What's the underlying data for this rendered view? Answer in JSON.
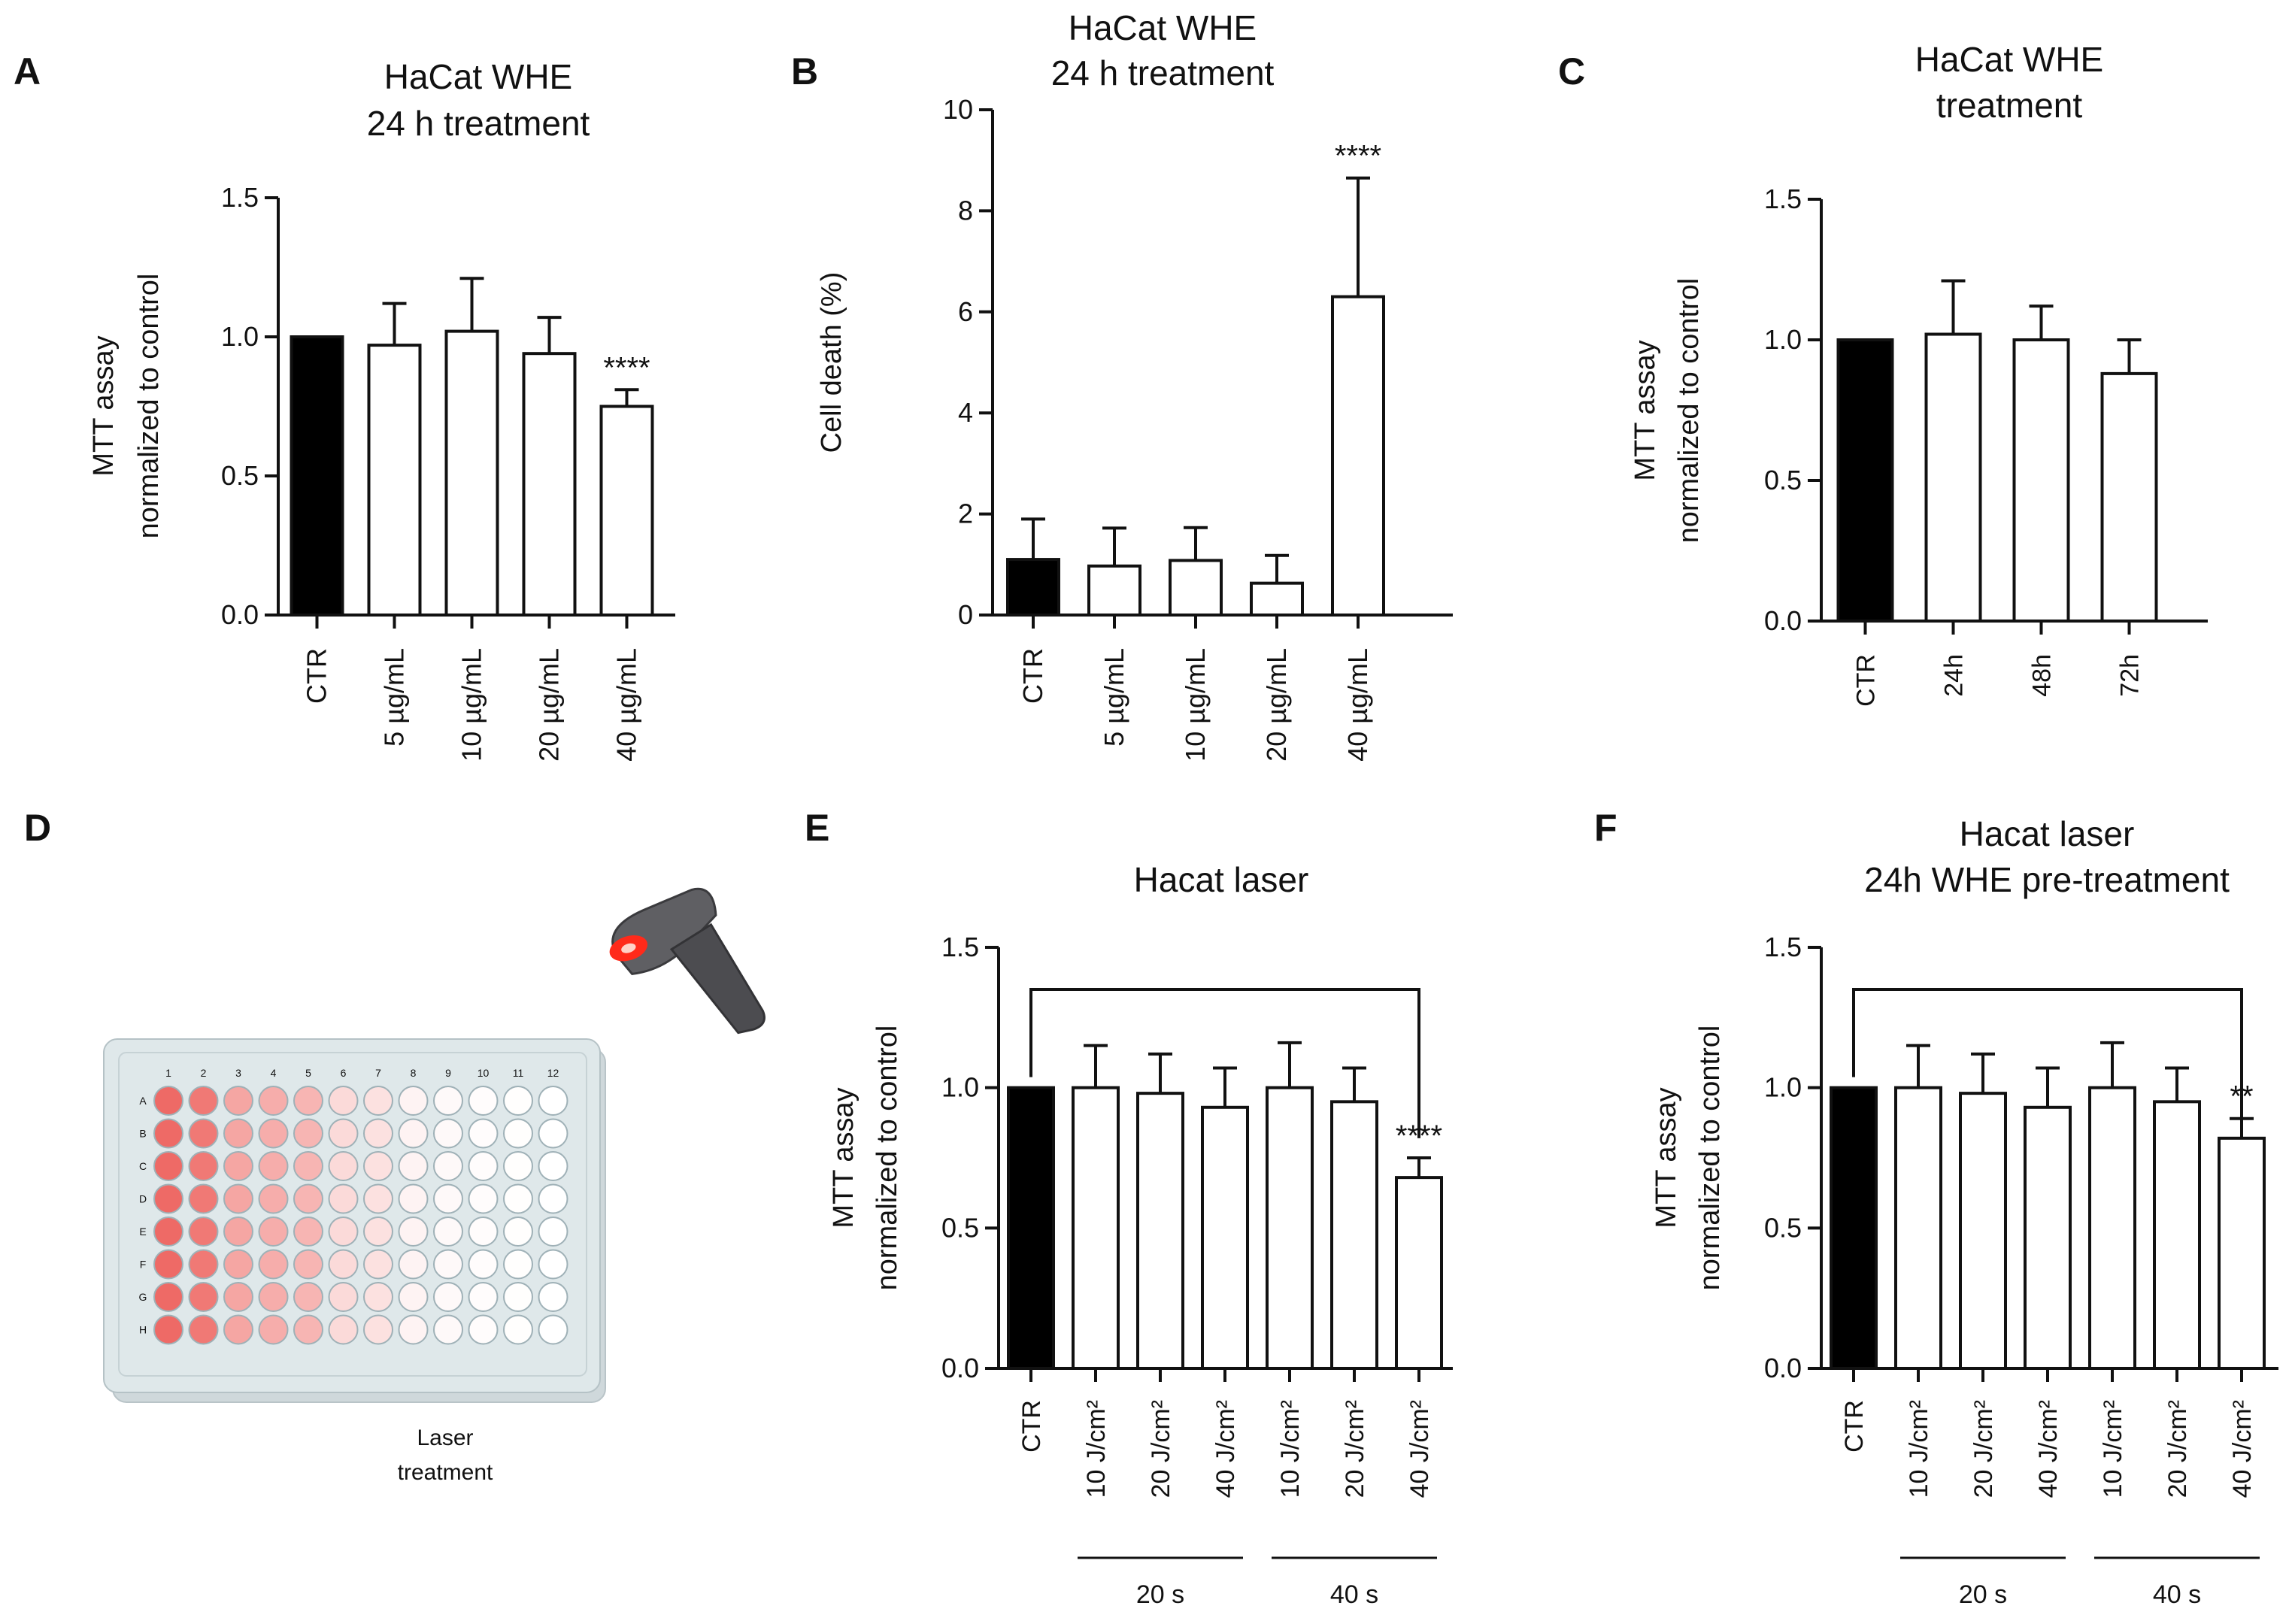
{
  "chart_data": [
    {
      "panel": "A",
      "type": "bar",
      "title": [
        "HaCat WHE",
        "24 h treatment"
      ],
      "ylabel": [
        "MTT assay",
        "normalized to control"
      ],
      "xlabel": "",
      "ylim": [
        0,
        1.5
      ],
      "yticks": [
        "0.0",
        "0.5",
        "1.0",
        "1.5"
      ],
      "categories": [
        "CTR",
        "5 µg/mL",
        "10 µg/mL",
        "20 µg/mL",
        "40 µg/mL"
      ],
      "values": [
        1.0,
        0.97,
        1.02,
        0.94,
        0.75
      ],
      "errors": [
        0,
        0.15,
        0.19,
        0.13,
        0.06
      ],
      "fills": [
        "#000000",
        "#ffffff",
        "#ffffff",
        "#ffffff",
        "#ffffff"
      ],
      "significance": [
        "",
        "",
        "",
        "",
        "****"
      ]
    },
    {
      "panel": "B",
      "type": "bar",
      "title": [
        "HaCat WHE",
        "24 h treatment"
      ],
      "ylabel": [
        "Cell death (%)"
      ],
      "xlabel": "",
      "ylim": [
        0,
        10
      ],
      "yticks": [
        "0",
        "2",
        "4",
        "6",
        "8",
        "10"
      ],
      "categories": [
        "CTR",
        "5 µg/mL",
        "10 µg/mL",
        "20 µg/mL",
        "40 µg/mL"
      ],
      "values": [
        1.1,
        0.97,
        1.08,
        0.63,
        6.3
      ],
      "errors": [
        0.8,
        0.75,
        0.65,
        0.55,
        2.35
      ],
      "fills": [
        "#000000",
        "#ffffff",
        "#ffffff",
        "#ffffff",
        "#ffffff"
      ],
      "significance": [
        "",
        "",
        "",
        "",
        "****"
      ]
    },
    {
      "panel": "C",
      "type": "bar",
      "title": [
        "HaCat WHE",
        "treatment"
      ],
      "ylabel": [
        "MTT assay",
        "normalized to control"
      ],
      "xlabel": "",
      "ylim": [
        0,
        1.5
      ],
      "yticks": [
        "0.0",
        "0.5",
        "1.0",
        "1.5"
      ],
      "categories": [
        "CTR",
        "24h",
        "48h",
        "72h"
      ],
      "values": [
        1.0,
        1.02,
        1.0,
        0.88
      ],
      "errors": [
        0,
        0.19,
        0.12,
        0.12
      ],
      "fills": [
        "#000000",
        "#ffffff",
        "#ffffff",
        "#ffffff"
      ],
      "significance": [
        "",
        "",
        "",
        ""
      ]
    },
    {
      "panel": "E",
      "type": "bar",
      "title": [
        "Hacat laser"
      ],
      "ylabel": [
        "MTT assay",
        "normalized to control"
      ],
      "xlabel": "",
      "ylim": [
        0,
        1.5
      ],
      "yticks": [
        "0.0",
        "0.5",
        "1.0",
        "1.5"
      ],
      "categories": [
        "CTR",
        "10 J/cm²",
        "20 J/cm²",
        "40 J/cm²",
        "10 J/cm²",
        "20 J/cm²",
        "40 J/cm²"
      ],
      "values": [
        1.0,
        1.0,
        0.98,
        0.93,
        1.0,
        0.95,
        0.68
      ],
      "errors": [
        0,
        0.15,
        0.14,
        0.14,
        0.16,
        0.12,
        0.07
      ],
      "fills": [
        "#000000",
        "#ffffff",
        "#ffffff",
        "#ffffff",
        "#ffffff",
        "#ffffff",
        "#ffffff"
      ],
      "significance": [
        "",
        "",
        "",
        "",
        "",
        "",
        "****"
      ],
      "groups": [
        {
          "label": "20 s",
          "from": 1,
          "to": 3
        },
        {
          "label": "40 s",
          "from": 4,
          "to": 6
        }
      ],
      "bracket": {
        "from": 0,
        "to": 6
      }
    },
    {
      "panel": "F",
      "type": "bar",
      "title": [
        "Hacat laser",
        "24h WHE pre-treatment"
      ],
      "ylabel": [
        "MTT assay",
        "normalized to control"
      ],
      "xlabel": "",
      "ylim": [
        0,
        1.5
      ],
      "yticks": [
        "0.0",
        "0.5",
        "1.0",
        "1.5"
      ],
      "categories": [
        "CTR",
        "10 J/cm²",
        "20 J/cm²",
        "40 J/cm²",
        "10 J/cm²",
        "20 J/cm²",
        "40 J/cm²"
      ],
      "values": [
        1.0,
        1.0,
        0.98,
        0.93,
        1.0,
        0.95,
        0.82
      ],
      "errors": [
        0,
        0.15,
        0.14,
        0.14,
        0.16,
        0.12,
        0.07
      ],
      "fills": [
        "#000000",
        "#ffffff",
        "#ffffff",
        "#ffffff",
        "#ffffff",
        "#ffffff",
        "#ffffff"
      ],
      "significance": [
        "",
        "",
        "",
        "",
        "",
        "",
        "**"
      ],
      "groups": [
        {
          "label": "20 s",
          "from": 1,
          "to": 3
        },
        {
          "label": "40 s",
          "from": 4,
          "to": 6
        }
      ],
      "bracket": {
        "from": 0,
        "to": 6
      }
    }
  ],
  "panel_d": {
    "panel": "D",
    "caption": [
      "Laser",
      "treatment"
    ],
    "plate_columns": [
      "1",
      "2",
      "3",
      "4",
      "5",
      "6",
      "7",
      "8",
      "9",
      "10",
      "11",
      "12"
    ],
    "plate_rows": [
      "A",
      "B",
      "C",
      "D",
      "E",
      "F",
      "G",
      "H"
    ],
    "column_intensity": [
      1.0,
      0.9,
      0.6,
      0.55,
      0.5,
      0.25,
      0.2,
      0.08,
      0.04,
      0.02,
      0.01,
      0
    ],
    "well_color": "#ee6a66",
    "plate_color": "#dfe8ea",
    "device_color": "#5f5f63",
    "laser_color": "#ff2a1a"
  }
}
